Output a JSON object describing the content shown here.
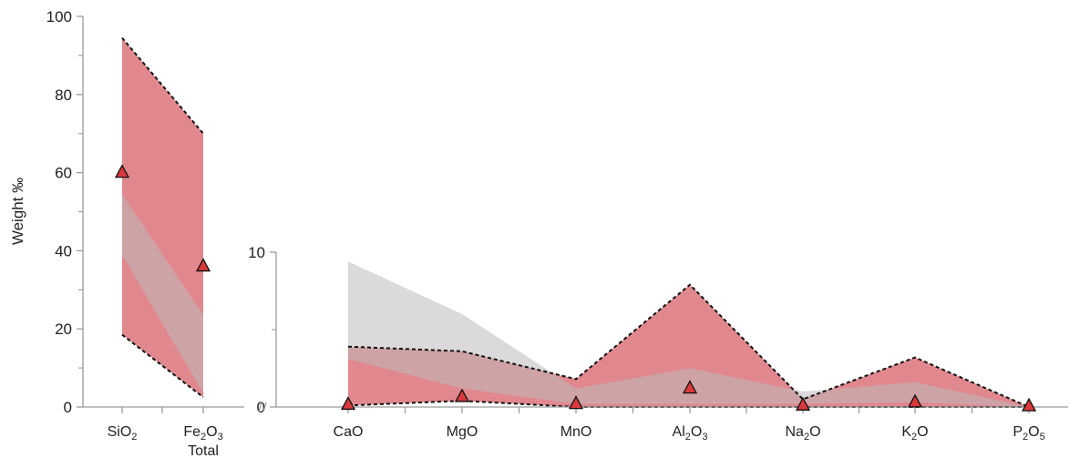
{
  "chart_data": [
    {
      "type": "area",
      "panel": "major",
      "ylabel": "Weight ‰",
      "ylim": [
        0,
        100
      ],
      "yticks": [
        0,
        20,
        40,
        60,
        80,
        100
      ],
      "categories": [
        {
          "base": "SiO",
          "sub": "2",
          "second_line": ""
        },
        {
          "base": "Fe",
          "sub": "2",
          "tail": "O",
          "sub2": "3",
          "second_line": "Total"
        }
      ],
      "series": [
        {
          "role": "range-band",
          "color": "#e0888e",
          "lower": [
            18.5,
            2.5
          ],
          "upper": [
            94.5,
            70
          ]
        },
        {
          "role": "comparison-band",
          "color": "#bdb9b9",
          "lower": [
            39,
            3.5
          ],
          "upper": [
            54.5,
            23.5
          ]
        },
        {
          "role": "measured-points",
          "marker": "triangle",
          "color": "#d9383c",
          "values": [
            60,
            36
          ]
        }
      ]
    },
    {
      "type": "area",
      "panel": "minor",
      "ylim": [
        0,
        10
      ],
      "yticks": [
        0,
        10
      ],
      "categories": [
        {
          "base": "CaO"
        },
        {
          "base": "MgO"
        },
        {
          "base": "MnO"
        },
        {
          "base": "Al",
          "sub": "2",
          "tail": "O",
          "sub2": "3"
        },
        {
          "base": "Na",
          "sub": "2",
          "tail": "O"
        },
        {
          "base": "K",
          "sub": "2",
          "tail": "O"
        },
        {
          "base": "P",
          "sub": "2",
          "tail": "O",
          "sub2": "5"
        }
      ],
      "series": [
        {
          "role": "range-band",
          "color": "#e0888e",
          "lower": [
            0.1,
            0.4,
            0,
            0,
            0,
            0,
            0
          ],
          "upper": [
            3.9,
            3.6,
            1.8,
            7.9,
            0.5,
            3.2,
            0
          ]
        },
        {
          "role": "comparison-band",
          "color": "#bdb9b9",
          "lower": [
            3.1,
            1.2,
            0.2,
            0.2,
            0.2,
            0.3,
            0
          ],
          "upper": [
            9.4,
            6.0,
            1.2,
            2.5,
            1.0,
            1.6,
            0
          ]
        },
        {
          "role": "measured-points",
          "marker": "triangle",
          "color": "#d9383c",
          "values": [
            0.15,
            0.65,
            0.2,
            1.2,
            0.1,
            0.3,
            0.05
          ]
        }
      ]
    }
  ]
}
